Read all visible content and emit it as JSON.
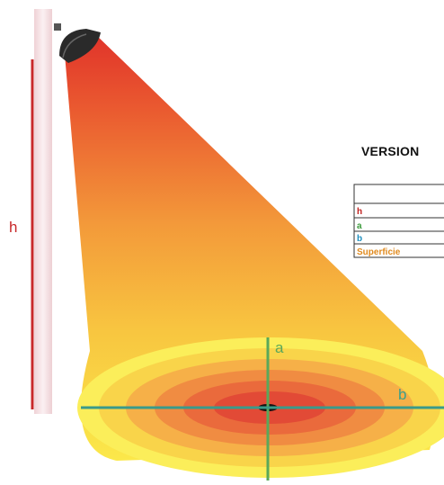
{
  "diagram": {
    "labels": {
      "height": "h",
      "width_a": "a",
      "length_b": "b"
    },
    "table": {
      "title": "VERSION",
      "rows": [
        {
          "label": "",
          "color": "#111111"
        },
        {
          "label": "h",
          "color": "#c0201e"
        },
        {
          "label": "a",
          "color": "#3a9a3a"
        },
        {
          "label": "b",
          "color": "#1e8fbf"
        },
        {
          "label": "Superficie",
          "color": "#e08a1e"
        }
      ]
    },
    "colors": {
      "height_line": "#c8282a",
      "axis_green": "#5aa85a",
      "axis_teal": "#3a9a8a",
      "beam_top": "#e0322a",
      "beam_mid": "#f39a3a",
      "beam_bottom": "#fbe84a",
      "pole": "#f6e3e6"
    }
  }
}
